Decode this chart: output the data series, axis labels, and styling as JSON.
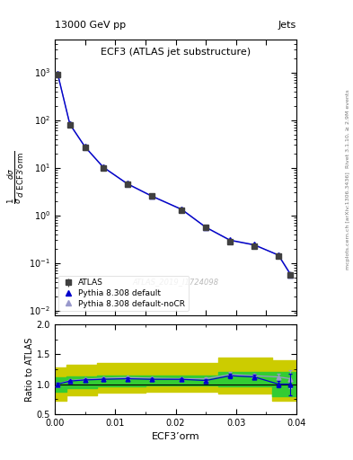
{
  "title_top": "13000 GeV pp",
  "title_right": "Jets",
  "plot_title": "ECF3 (ATLAS jet substructure)",
  "xlabel": "ECF3’orm",
  "ylabel_ratio": "Ratio to ATLAS",
  "watermark": "ATLAS_2019_I1724098",
  "right_label": "Rivet 3.1.10, ≥ 2.9M events",
  "right_label2": "mcplots.cern.ch [arXiv:1306.3436]",
  "x_data": [
    0.0005,
    0.0025,
    0.005,
    0.008,
    0.012,
    0.016,
    0.021,
    0.025,
    0.029,
    0.033,
    0.037,
    0.039
  ],
  "atlas_y": [
    900,
    80,
    27,
    10,
    4.5,
    2.5,
    1.3,
    0.55,
    0.28,
    0.22,
    0.14,
    0.055
  ],
  "atlas_yerr_lo": [
    50,
    5,
    2,
    0.8,
    0.4,
    0.2,
    0.1,
    0.05,
    0.03,
    0.02,
    0.015,
    0.006
  ],
  "atlas_yerr_hi": [
    50,
    5,
    2,
    0.8,
    0.4,
    0.2,
    0.1,
    0.05,
    0.03,
    0.02,
    0.015,
    0.006
  ],
  "pythia_default_y": [
    920,
    82,
    27.5,
    10.3,
    4.6,
    2.55,
    1.33,
    0.56,
    0.3,
    0.24,
    0.145,
    0.057
  ],
  "pythia_nocr_y": [
    910,
    81,
    27.2,
    10.2,
    4.55,
    2.52,
    1.31,
    0.555,
    0.295,
    0.235,
    0.148,
    0.059
  ],
  "ratio_x": [
    0.0005,
    0.0025,
    0.005,
    0.008,
    0.012,
    0.016,
    0.021,
    0.025,
    0.029,
    0.033,
    0.037,
    0.039
  ],
  "ratio_default": [
    1.0,
    1.05,
    1.07,
    1.08,
    1.09,
    1.08,
    1.08,
    1.06,
    1.14,
    1.12,
    1.0,
    1.0
  ],
  "ratio_nocr": [
    1.0,
    1.06,
    1.08,
    1.1,
    1.11,
    1.1,
    1.09,
    1.09,
    1.16,
    1.14,
    1.12,
    1.09
  ],
  "ratio_default_err": [
    0.03,
    0.02,
    0.02,
    0.02,
    0.02,
    0.02,
    0.02,
    0.03,
    0.04,
    0.04,
    0.05,
    0.18
  ],
  "ratio_nocr_err": [
    0.03,
    0.02,
    0.02,
    0.02,
    0.02,
    0.02,
    0.02,
    0.03,
    0.04,
    0.04,
    0.06,
    0.15
  ],
  "green_band_x": [
    0.0,
    0.002,
    0.007,
    0.015,
    0.027,
    0.036,
    0.04
  ],
  "green_band_lo": [
    0.88,
    0.94,
    0.97,
    0.98,
    0.97,
    0.8,
    0.8
  ],
  "green_band_hi": [
    1.12,
    1.13,
    1.14,
    1.14,
    1.2,
    1.2,
    1.2
  ],
  "yellow_band_x": [
    0.0,
    0.002,
    0.007,
    0.015,
    0.027,
    0.036,
    0.04
  ],
  "yellow_band_lo": [
    0.72,
    0.82,
    0.86,
    0.88,
    0.85,
    0.72,
    0.72
  ],
  "yellow_band_hi": [
    1.28,
    1.32,
    1.36,
    1.36,
    1.44,
    1.4,
    1.4
  ],
  "color_atlas": "#404040",
  "color_pythia_default": "#0000cc",
  "color_pythia_nocr": "#9999cc",
  "color_green": "#33cc33",
  "color_yellow": "#cccc00",
  "xlim": [
    0.0,
    0.04
  ],
  "ylim_main": [
    0.008,
    5000
  ],
  "ylim_ratio": [
    0.5,
    2.0
  ]
}
